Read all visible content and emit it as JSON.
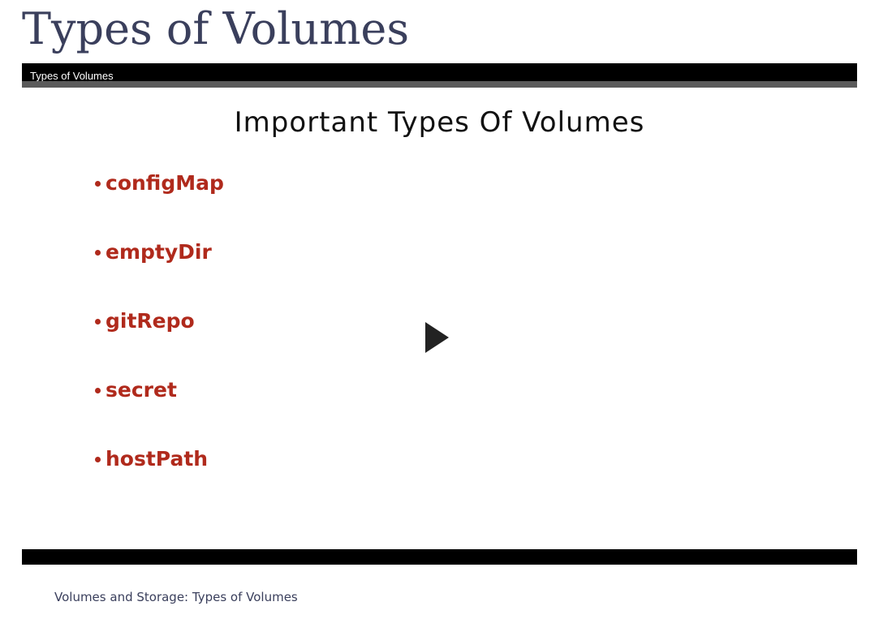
{
  "page": {
    "title": "Types of Volumes"
  },
  "video": {
    "title": "Types of Volumes",
    "play_icon": "play-icon",
    "slide": {
      "heading": "Important Types Of Volumes",
      "items": [
        {
          "label": "configMap"
        },
        {
          "label": "emptyDir"
        },
        {
          "label": "gitRepo"
        },
        {
          "label": "secret"
        },
        {
          "label": "hostPath"
        }
      ]
    }
  },
  "caption": "Volumes and Storage: Types of Volumes",
  "colors": {
    "title_text": "#3a3f5c",
    "slide_bullet_text": "#b02a1c",
    "player_bar": "#000000"
  }
}
